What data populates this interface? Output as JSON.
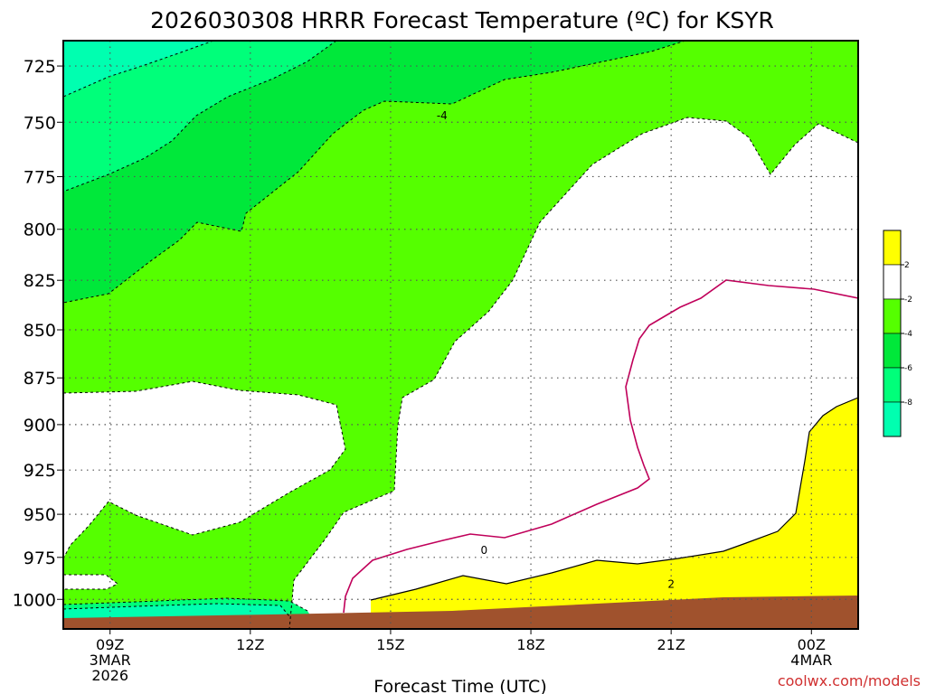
{
  "chart_data": {
    "type": "heatmap",
    "title": "2026030308 HRRR Forecast Temperature (ºC) for KSYR",
    "xlabel": "Forecast Time (UTC)",
    "ylabel": "",
    "credit": "coolwx.com/models",
    "x_range_hours": [
      8,
      25
    ],
    "y_range_hpa": [
      714,
      1018
    ],
    "y_scale": "log-pressure",
    "grid": true,
    "x_ticks": [
      {
        "hour": 9,
        "lines": [
          "09Z",
          "3MAR",
          "2026"
        ]
      },
      {
        "hour": 12,
        "lines": [
          "12Z"
        ]
      },
      {
        "hour": 15,
        "lines": [
          "15Z"
        ]
      },
      {
        "hour": 18,
        "lines": [
          "18Z"
        ]
      },
      {
        "hour": 21,
        "lines": [
          "21Z"
        ]
      },
      {
        "hour": 24,
        "lines": [
          "00Z",
          "4MAR"
        ]
      }
    ],
    "y_ticks": [
      725,
      750,
      775,
      800,
      825,
      850,
      875,
      900,
      925,
      950,
      975,
      1000
    ],
    "legend": {
      "placement": "right",
      "bands": [
        {
          "range": [
            2,
            4
          ],
          "color": "#ffff00"
        },
        {
          "range": [
            -2,
            2
          ],
          "color": "#ffffff"
        },
        {
          "range": [
            -4,
            -2
          ],
          "color": "#55ff00"
        },
        {
          "range": [
            -6,
            -4
          ],
          "color": "#00e83a"
        },
        {
          "range": [
            -8,
            -6
          ],
          "color": "#00ff7a"
        },
        {
          "range": [
            -10,
            -8
          ],
          "color": "#00ffb0"
        }
      ],
      "tick_labels": [
        "2",
        "-2",
        "-4",
        "-6",
        "-8"
      ]
    },
    "contour_labels": [
      {
        "text": "-4",
        "hour": 16.1,
        "hpa": 747
      },
      {
        "text": "0",
        "hour": 17.0,
        "hpa": 971
      },
      {
        "text": "2",
        "hour": 21.0,
        "hpa": 991
      }
    ],
    "ground_color": "#a0522d"
  }
}
